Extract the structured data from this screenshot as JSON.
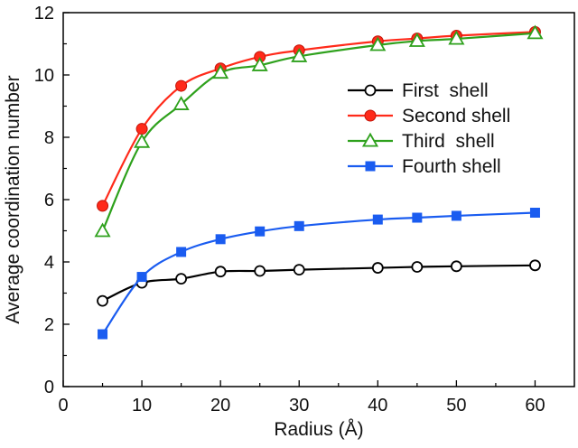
{
  "chart_data": {
    "type": "line",
    "xlabel": "Radius (Å)",
    "ylabel": "Average coordination number",
    "xlim": [
      0,
      65
    ],
    "ylim": [
      0,
      12
    ],
    "xticks": [
      0,
      10,
      20,
      30,
      40,
      50,
      60
    ],
    "yticks": [
      0,
      2,
      4,
      6,
      8,
      10,
      12
    ],
    "grid": false,
    "legend_position": "right",
    "x": [
      5,
      10,
      15,
      20,
      25,
      30,
      40,
      45,
      50,
      60
    ],
    "series": [
      {
        "name": "First  shell",
        "color": "#000000",
        "marker": "open-circle",
        "values": [
          2.75,
          3.33,
          3.46,
          3.69,
          3.71,
          3.75,
          3.81,
          3.84,
          3.86,
          3.89
        ]
      },
      {
        "name": "Second shell",
        "color": "#ff2a1a",
        "marker": "filled-circle",
        "values": [
          5.8,
          8.27,
          9.65,
          10.21,
          10.58,
          10.79,
          11.08,
          11.17,
          11.26,
          11.38
        ]
      },
      {
        "name": "Third  shell",
        "color": "#2ea11c",
        "marker": "open-triangle",
        "values": [
          4.99,
          7.85,
          9.06,
          10.07,
          10.31,
          10.6,
          10.96,
          11.09,
          11.16,
          11.34
        ]
      },
      {
        "name": "Fourth shell",
        "color": "#1a5cf0",
        "marker": "filled-square",
        "values": [
          1.68,
          3.52,
          4.32,
          4.73,
          4.98,
          5.15,
          5.36,
          5.42,
          5.48,
          5.58
        ]
      }
    ]
  }
}
